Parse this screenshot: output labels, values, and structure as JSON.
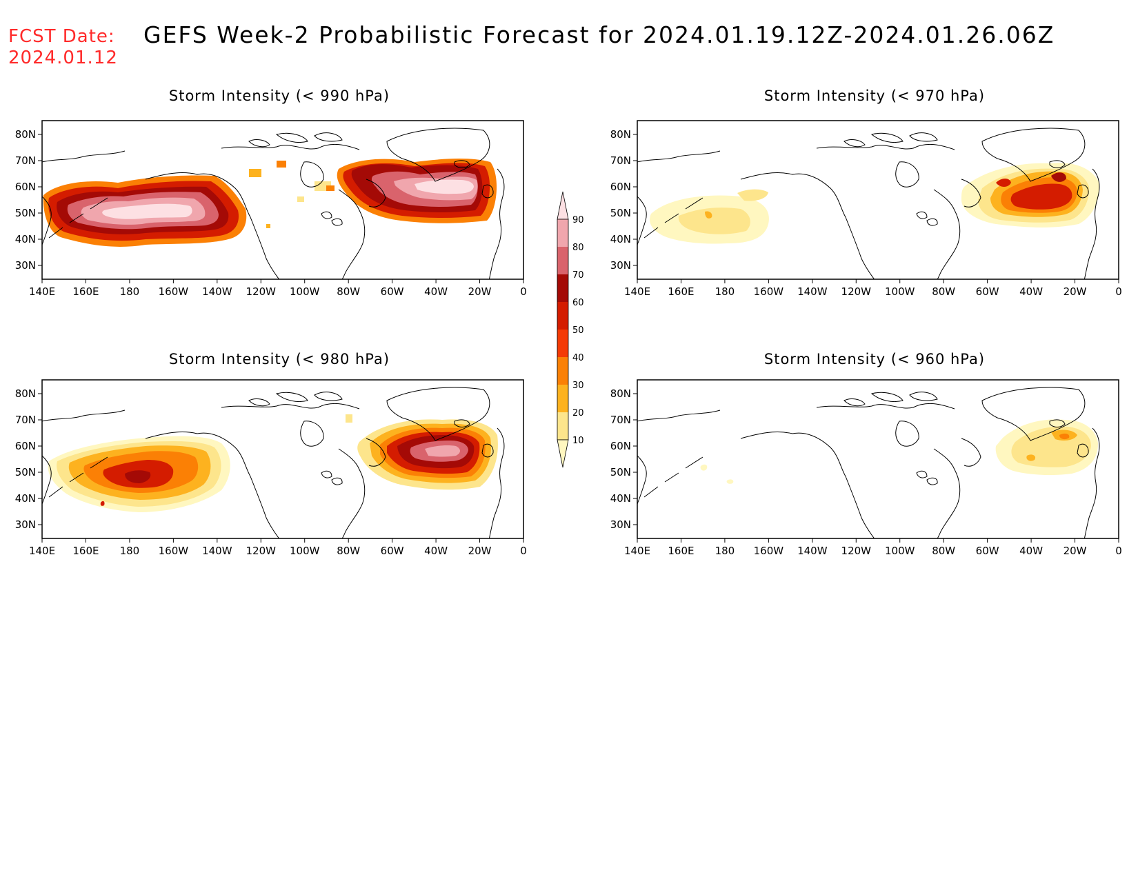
{
  "fcst_date": {
    "label": "FCST Date:",
    "value": "2024.01.12"
  },
  "title": "GEFS Week-2 Probabilistic Forecast for 2024.01.19.12Z-2024.01.26.06Z",
  "axes": {
    "lon_ticks": [
      "140E",
      "160E",
      "180",
      "160W",
      "140W",
      "120W",
      "100W",
      "80W",
      "60W",
      "40W",
      "20W",
      "0"
    ],
    "lat_ticks": [
      "80N",
      "70N",
      "60N",
      "50N",
      "40N",
      "30N"
    ]
  },
  "colorbar": {
    "levels": [
      "10",
      "20",
      "30",
      "40",
      "50",
      "60",
      "70",
      "80",
      "90"
    ],
    "colors": [
      "#fff7c0",
      "#fde58c",
      "#fdb21f",
      "#fb8005",
      "#f43a05",
      "#d41c00",
      "#a40a06",
      "#d9636c",
      "#f0a6ad",
      "#fde0e3"
    ]
  },
  "panels": [
    {
      "id": "p990",
      "title": "Storm Intensity (< 990 hPa)"
    },
    {
      "id": "p970",
      "title": "Storm Intensity (< 970 hPa)"
    },
    {
      "id": "p980",
      "title": "Storm Intensity (< 980 hPa)"
    },
    {
      "id": "p960",
      "title": "Storm Intensity (< 960 hPa)"
    }
  ]
}
